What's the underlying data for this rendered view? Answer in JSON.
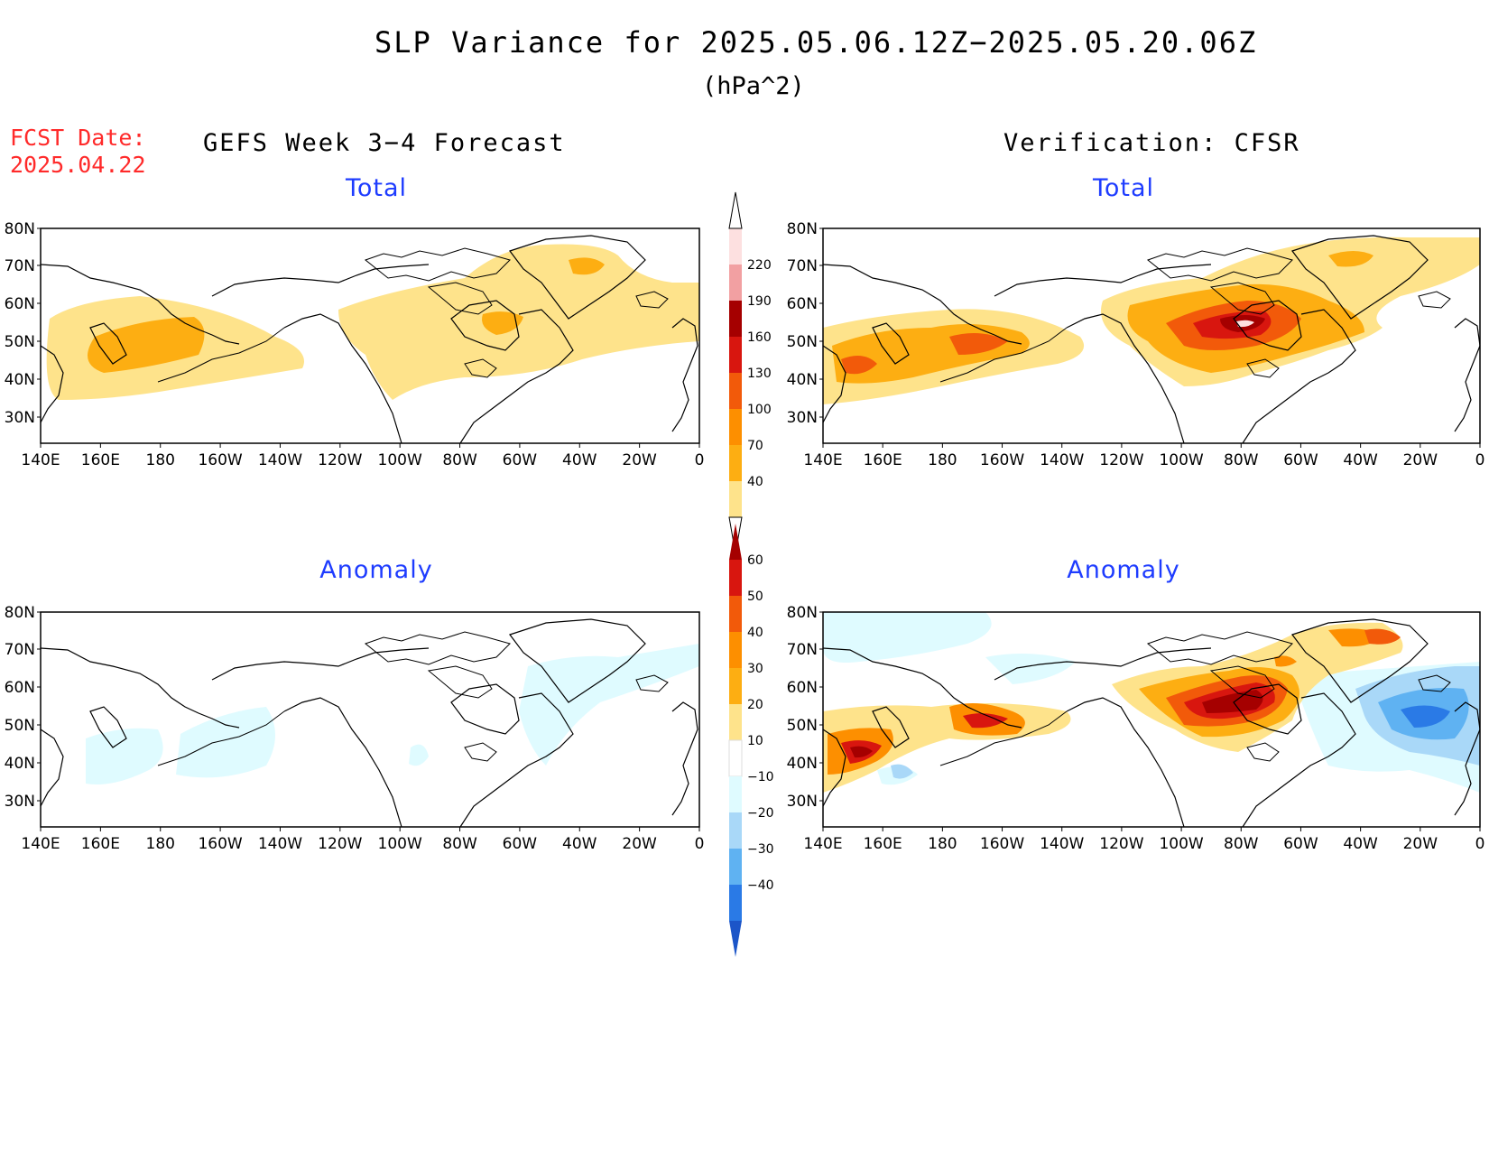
{
  "header": {
    "title": "SLP Variance for 2025.05.06.12Z−2025.05.20.06Z",
    "units": "(hPa^2)",
    "fcst_label": "FCST Date:",
    "fcst_date": "2025.04.22",
    "left_column_title": "GEFS Week 3−4 Forecast",
    "right_column_title": "Verification: CFSR"
  },
  "panels": {
    "top_left_label": "Total",
    "top_right_label": "Total",
    "bottom_left_label": "Anomaly",
    "bottom_right_label": "Anomaly"
  },
  "axes": {
    "lat_ticks": [
      "80N",
      "70N",
      "60N",
      "50N",
      "40N",
      "30N"
    ],
    "lon_ticks": [
      "140E",
      "160E",
      "180",
      "160W",
      "140W",
      "120W",
      "100W",
      "80W",
      "60W",
      "40W",
      "20W",
      "0"
    ]
  },
  "total_colorbar": {
    "levels": [
      "40",
      "70",
      "100",
      "130",
      "160",
      "190",
      "220"
    ],
    "colors": [
      "#fee38b",
      "#fdae12",
      "#fd8f00",
      "#f25a0a",
      "#d8160f",
      "#a50000",
      "#f2a0a2",
      "#fde0e0"
    ]
  },
  "anomaly_colorbar": {
    "levels": [
      "60",
      "50",
      "40",
      "30",
      "20",
      "10",
      "−10",
      "−20",
      "−30",
      "−40"
    ],
    "colors": [
      "#a50000",
      "#d8160f",
      "#f25a0a",
      "#fd8f00",
      "#fdae12",
      "#fee38b",
      "#ffffff",
      "#dffbff",
      "#a9d8f8",
      "#5fb2f2",
      "#2a7ae6",
      "#1c55c8"
    ]
  },
  "colors": {
    "title_text": "#000000",
    "fcst_text": "#ff2a2a",
    "panel_label": "#1e3cff"
  }
}
